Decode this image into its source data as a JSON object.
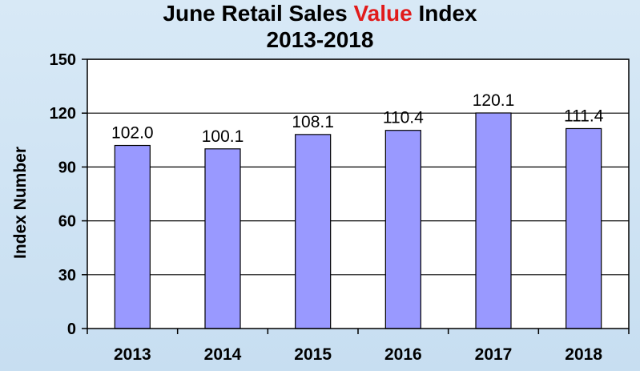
{
  "title": {
    "part1": "June Retail Sales",
    "accent": "Value",
    "part2": "Index",
    "line2": "2013-2018"
  },
  "colors": {
    "bar_fill": "#9999ff",
    "bar_stroke": "#000000",
    "title_accent": "#e11b1b",
    "plot_bg": "#ffffff"
  },
  "chart_data": {
    "type": "bar",
    "title": "June Retail Sales Value Index 2013-2018",
    "xlabel": "",
    "ylabel": "Index Number",
    "categories": [
      "2013",
      "2014",
      "2015",
      "2016",
      "2017",
      "2018"
    ],
    "values": [
      102.0,
      100.1,
      108.1,
      110.4,
      120.1,
      111.4
    ],
    "value_labels": [
      "102.0",
      "100.1",
      "108.1",
      "110.4",
      "120.1",
      "111.4"
    ],
    "ylim": [
      0,
      150
    ],
    "yticks": [
      0,
      30,
      60,
      90,
      120,
      150
    ],
    "ytick_labels": [
      "0",
      "30",
      "60",
      "90",
      "120",
      "150"
    ],
    "grid": true,
    "legend": "none"
  }
}
